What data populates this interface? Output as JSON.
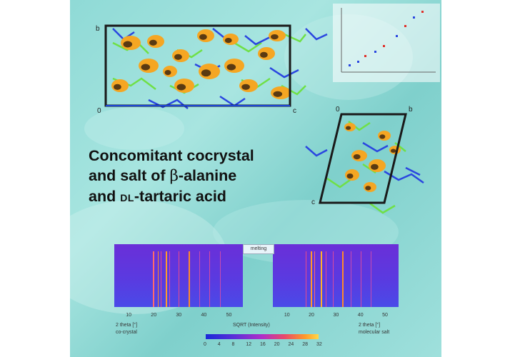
{
  "title": {
    "line1": "Concomitant cocrystal",
    "line2_prefix": "and salt of ",
    "beta": "β",
    "line2_suffix": "-alanine",
    "line3_prefix": "and ",
    "dl": "DL",
    "line3_suffix": "-tartaric acid"
  },
  "cell_top": {
    "axis_b": "b",
    "axis_o": "0",
    "axis_c": "c"
  },
  "cell_right": {
    "axis_o": "0",
    "axis_b": "b",
    "axis_c": "c"
  },
  "heatmaps": {
    "middle_label": "melting",
    "left_xlabel": "2 theta [°]",
    "left_caption": "co-crystal",
    "right_xlabel": "2 theta [°]",
    "right_caption": "molecular salt",
    "colorbar_label": "SQRT (Intensity)",
    "x_ticks": [
      "10",
      "20",
      "30",
      "40",
      "50"
    ],
    "colorbar_ticks": [
      "0",
      "4",
      "8",
      "12",
      "16",
      "20",
      "24",
      "28",
      "32"
    ]
  },
  "colors": {
    "background": "#8fdad6",
    "cell_box": "#1a1a1a",
    "molecule_orange": "#f5a623",
    "molecule_dark": "#5a3a12",
    "green_network": "#6fe046",
    "blue_network": "#2a46e0",
    "heat_base": "#6a2fd8",
    "heat_line": "#ff8a2a"
  }
}
